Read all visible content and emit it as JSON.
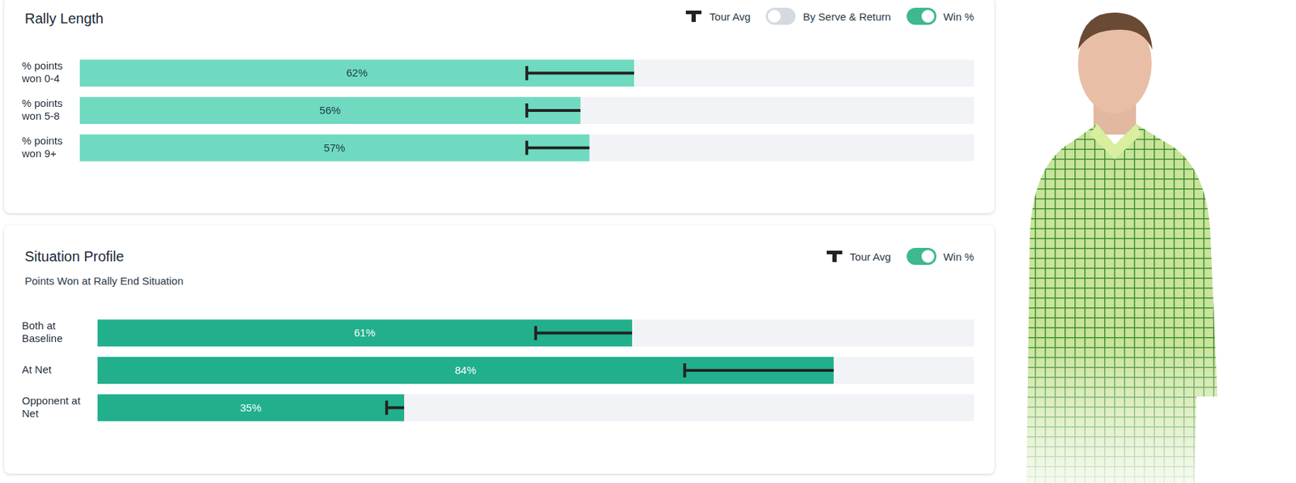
{
  "chart_data": [
    {
      "type": "bar",
      "orientation": "horizontal",
      "title": "Rally Length",
      "controls": [
        {
          "label": "Tour Avg"
        },
        {
          "label": "By Serve & Return",
          "on": false
        },
        {
          "label": "Win %",
          "on": true
        }
      ],
      "categories": [
        "% points won 0-4",
        "% points won 5-8",
        "% points won 9+"
      ],
      "values": [
        62,
        56,
        57
      ],
      "value_labels": [
        "62%",
        "56%",
        "57%"
      ],
      "tour_avg": [
        50,
        50,
        50
      ],
      "color": "#6fdabf",
      "xlim": [
        0,
        100
      ],
      "tick_labels": false,
      "grid": false,
      "data_labels": true
    },
    {
      "type": "bar",
      "orientation": "horizontal",
      "title": "Situation Profile",
      "subtitle": "Points Won at Rally End Situation",
      "controls": [
        {
          "label": "Tour Avg"
        },
        {
          "label": "Win %",
          "on": true
        }
      ],
      "categories": [
        "Both at Baseline",
        "At Net",
        "Opponent at Net"
      ],
      "values": [
        61,
        84,
        35
      ],
      "value_labels": [
        "61%",
        "84%",
        "35%"
      ],
      "tour_avg": [
        50,
        67,
        33
      ],
      "color": "#22b08c",
      "xlim": [
        0,
        100
      ],
      "tick_labels": false,
      "grid": false,
      "data_labels": true
    }
  ]
}
